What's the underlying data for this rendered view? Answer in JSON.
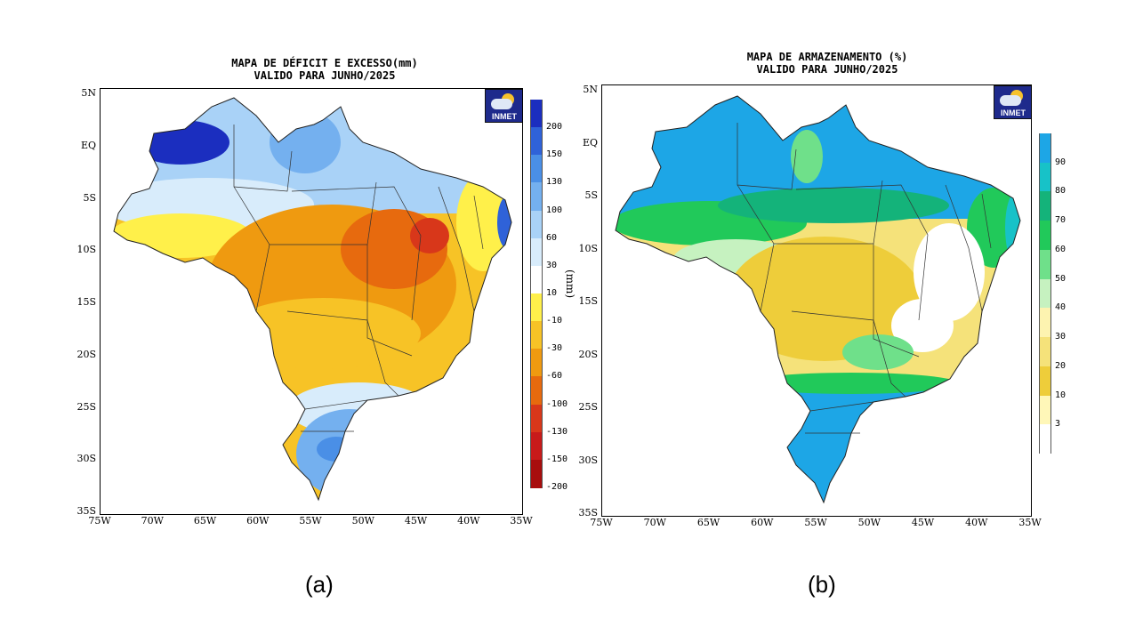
{
  "panels": [
    {
      "title_line1": "MAPA DE DÉFICIT E EXCESSO(mm)",
      "title_line2": "VALIDO PARA JUNHO/2025",
      "logo_text": "INMET",
      "unit_label": "(mm)",
      "caption": "(a)",
      "lat_labels": [
        "5N",
        "EQ",
        "5S",
        "10S",
        "15S",
        "20S",
        "25S",
        "30S",
        "35S"
      ],
      "lon_labels": [
        "75W",
        "70W",
        "65W",
        "60W",
        "55W",
        "50W",
        "45W",
        "40W",
        "35W"
      ],
      "colorbar_labels": [
        "200",
        "150",
        "130",
        "100",
        "60",
        "30",
        "10",
        "-10",
        "-30",
        "-60",
        "-100",
        "-130",
        "-150",
        "-200"
      ],
      "colorbar_colors": [
        "#1b2ebf",
        "#2f62d8",
        "#4a8fe6",
        "#74b0ef",
        "#a9d2f7",
        "#d8ecfb",
        "#ffffff",
        "#fff04a",
        "#f7c326",
        "#ef9a10",
        "#e76a0e",
        "#d8371a",
        "#c81a1a",
        "#a80d0d"
      ]
    },
    {
      "title_line1": "MAPA DE ARMAZENAMENTO (%)",
      "title_line2": "VALIDO PARA JUNHO/2025",
      "logo_text": "INMET",
      "caption": "(b)",
      "lat_labels": [
        "5N",
        "EQ",
        "5S",
        "10S",
        "15S",
        "20S",
        "25S",
        "30S",
        "35S"
      ],
      "lon_labels": [
        "75W",
        "70W",
        "65W",
        "60W",
        "55W",
        "50W",
        "45W",
        "40W",
        "35W"
      ],
      "colorbar_labels": [
        "90",
        "80",
        "70",
        "60",
        "50",
        "40",
        "30",
        "20",
        "10",
        "3"
      ],
      "colorbar_colors": [
        "#1da6e6",
        "#17c2c8",
        "#14b37a",
        "#21c95a",
        "#6fe08a",
        "#c6f2c0",
        "#fdf3b0",
        "#f5e27a",
        "#eecd3a",
        "#fff7b8",
        "#ffffff"
      ]
    }
  ]
}
